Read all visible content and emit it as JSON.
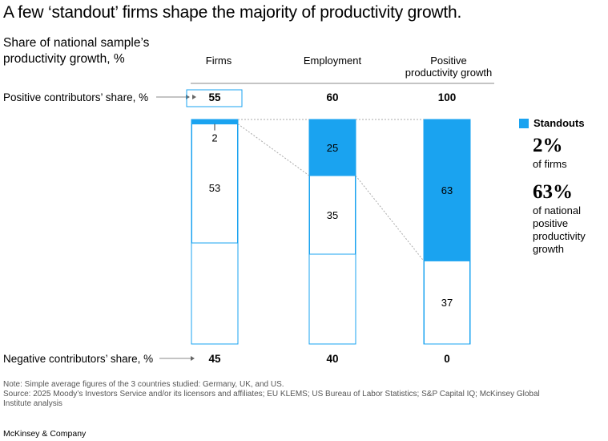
{
  "title": "A few ‘standout’ firms shape the majority of productivity growth.",
  "subtitle": {
    "bold": "Share of national sample’s productivity growth,",
    "unit": "%"
  },
  "columns": [
    {
      "label_line1": "Firms",
      "label_line2": ""
    },
    {
      "label_line1": "Employment",
      "label_line2": ""
    },
    {
      "label_line1": "Positive",
      "label_line2": "productivity growth"
    }
  ],
  "row_labels": {
    "positive": "Positive contributors’ share,",
    "negative": "Negative contributors’ share,",
    "unit": "%"
  },
  "positive_shares": [
    "55",
    "60",
    "100"
  ],
  "negative_shares": [
    "45",
    "40",
    "0"
  ],
  "legend": {
    "label": "Standouts",
    "color": "#1aa3f0"
  },
  "callouts": [
    {
      "value": "2%",
      "text": "of firms"
    },
    {
      "value": "63%",
      "text_lines": [
        "of national",
        "positive",
        "productivity",
        "growth"
      ]
    }
  ],
  "chart_data": {
    "type": "bar",
    "categories": [
      "Firms",
      "Employment",
      "Positive productivity growth"
    ],
    "series": [
      {
        "name": "Standouts",
        "values": [
          2,
          25,
          63
        ]
      },
      {
        "values": [
          53,
          35,
          37
        ]
      }
    ],
    "ylim": [
      0,
      100
    ]
  },
  "note": "Note: Simple average figures of the 3 countries studied: Germany, UK, and US.",
  "source": "Source: 2025 Moody’s Investors Service and/or its licensors and affiliates; EU KLEMS; US Bureau of Labor Statistics; S&P Capital IQ; McKinsey Global Institute analysis",
  "brand": "McKinsey & Company"
}
